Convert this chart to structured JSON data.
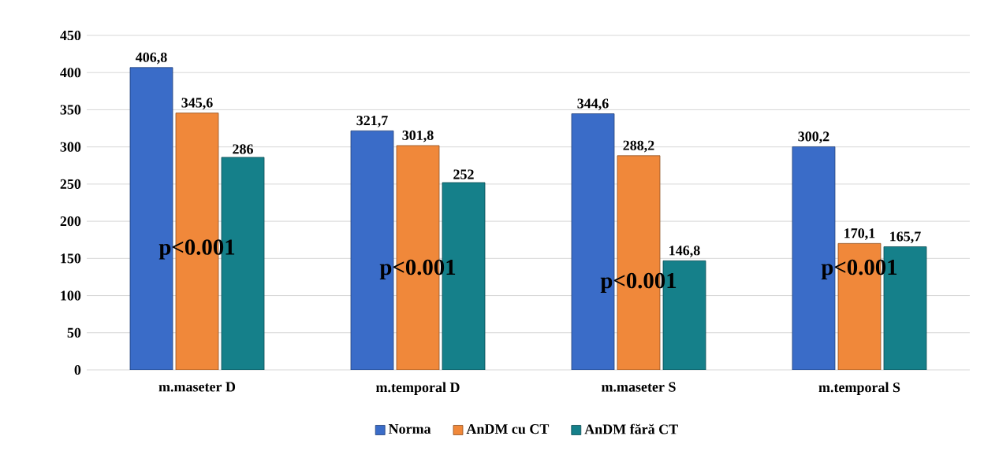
{
  "chart_data": {
    "type": "bar",
    "categories": [
      "m.maseter D",
      "m.temporal D",
      "m.maseter S",
      "m.temporal S"
    ],
    "series": [
      {
        "name": "Norma",
        "color": "#3a6cc8",
        "values": [
          406.8,
          321.7,
          344.6,
          300.2
        ],
        "value_labels": [
          "406,8",
          "321,7",
          "344,6",
          "300,2"
        ]
      },
      {
        "name": "AnDM cu CT",
        "color": "#f0883a",
        "values": [
          345.6,
          301.8,
          288.2,
          170.1
        ],
        "value_labels": [
          "345,6",
          "301,8",
          "288,2",
          "170,1"
        ]
      },
      {
        "name": "AnDM fără CT",
        "color": "#15808a",
        "values": [
          286,
          252,
          146.8,
          165.7
        ],
        "value_labels": [
          "286",
          "252",
          "146,8",
          "165,7"
        ]
      }
    ],
    "ylim": [
      0,
      450
    ],
    "yticks": [
      0,
      50,
      100,
      150,
      200,
      250,
      300,
      350,
      400,
      450
    ],
    "grid": "y",
    "legend": "bottom",
    "annotations": [
      "p<0.001",
      "p<0.001",
      "p<0.001",
      "p<0.001"
    ]
  }
}
